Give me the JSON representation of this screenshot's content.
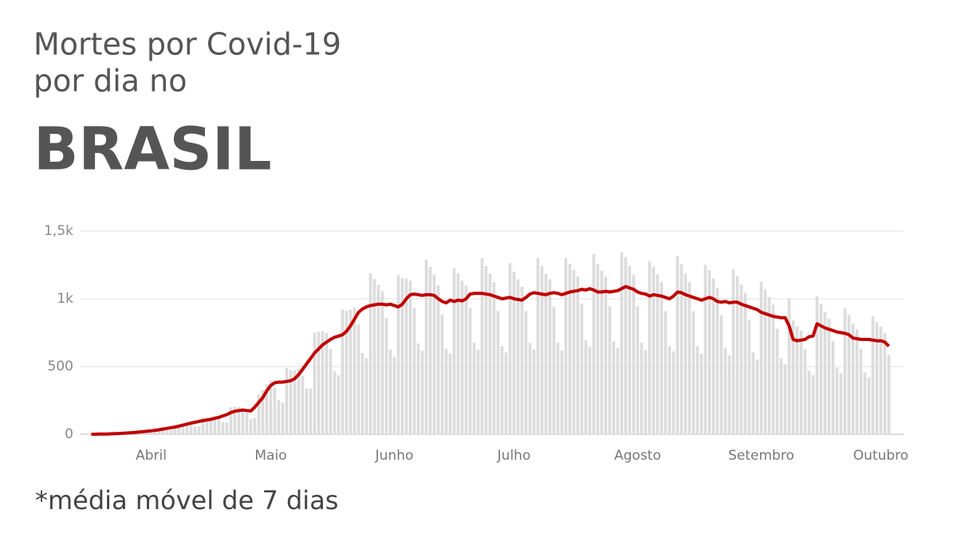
{
  "chart_data": {
    "type": "bar",
    "title": "Mortes por Covid-19",
    "title_line2": "por dia no",
    "subtitle": "BRASIL",
    "note": "*média móvel de 7 dias",
    "ylim": [
      0,
      1500
    ],
    "yticks": [
      0,
      500,
      {
        "value": 1000,
        "label": "1k"
      },
      {
        "value": 1500,
        "label": "1,5k"
      }
    ],
    "grid": true,
    "categories": [
      null,
      null,
      null,
      null,
      null,
      null,
      null,
      null,
      null,
      null,
      null,
      null,
      null,
      null,
      null,
      "Abril",
      null,
      null,
      null,
      null,
      null,
      null,
      null,
      null,
      null,
      null,
      null,
      null,
      null,
      null,
      null,
      null,
      null,
      null,
      null,
      null,
      null,
      null,
      null,
      null,
      null,
      null,
      null,
      null,
      null,
      "Maio",
      null,
      null,
      null,
      null,
      null,
      null,
      null,
      null,
      null,
      null,
      null,
      null,
      null,
      null,
      null,
      null,
      null,
      null,
      null,
      null,
      null,
      null,
      null,
      null,
      null,
      null,
      null,
      null,
      null,
      null,
      "Junho",
      null,
      null,
      null,
      null,
      null,
      null,
      null,
      null,
      null,
      null,
      null,
      null,
      null,
      null,
      null,
      null,
      null,
      null,
      null,
      null,
      null,
      null,
      null,
      null,
      null,
      null,
      null,
      null,
      null,
      "Julho",
      null,
      null,
      null,
      null,
      null,
      null,
      null,
      null,
      null,
      null,
      null,
      null,
      null,
      null,
      null,
      null,
      null,
      null,
      null,
      null,
      null,
      null,
      null,
      null,
      null,
      null,
      null,
      null,
      null,
      null,
      "Agosto",
      null,
      null,
      null,
      null,
      null,
      null,
      null,
      null,
      null,
      null,
      null,
      null,
      null,
      null,
      null,
      null,
      null,
      null,
      null,
      null,
      null,
      null,
      null,
      null,
      null,
      null,
      null,
      null,
      null,
      null,
      "Setembro",
      null,
      null,
      null,
      null,
      null,
      null,
      null,
      null,
      null,
      null,
      null,
      null,
      null,
      null,
      null,
      null,
      null,
      null,
      null,
      null,
      null,
      null,
      null,
      null,
      null,
      null,
      null,
      null,
      null,
      "Outubro",
      null,
      null
    ],
    "series": [
      {
        "type": "bar",
        "color": "#dcdcdc",
        "values": [
          0,
          0,
          1,
          1,
          2,
          2,
          2,
          6,
          8,
          10,
          12,
          12,
          10,
          11,
          28,
          30,
          33,
          36,
          34,
          28,
          29,
          66,
          72,
          77,
          83,
          74,
          57,
          57,
          125,
          126,
          127,
          130,
          113,
          88,
          87,
          200,
          204,
          201,
          196,
          158,
          112,
          120,
          294,
          324,
          368,
          396,
          342,
          250,
          231,
          488,
          474,
          472,
          484,
          432,
          338,
          336,
          750,
          756,
          759,
          748,
          630,
          465,
          435,
          919,
          912,
          920,
          935,
          810,
          601,
          564,
          1188,
          1146,
          1104,
          1056,
          860,
          624,
          570,
          1175,
          1152,
          1150,
          1133,
          932,
          670,
          615,
          1288,
          1236,
          1179,
          1100,
          882,
          631,
          594,
          1225,
          1188,
          1133,
          1100,
          932,
          676,
          624,
          1300,
          1242,
          1185,
          1122,
          909,
          650,
          603,
          1263,
          1200,
          1144,
          1089,
          909,
          673,
          627,
          1300,
          1242,
          1185,
          1144,
          941,
          676,
          618,
          1300,
          1260,
          1213,
          1166,
          963,
          692,
          645,
          1331,
          1260,
          1208,
          1161,
          945,
          686,
          636,
          1344,
          1308,
          1242,
          1177,
          945,
          676,
          621,
          1275,
          1236,
          1179,
          1122,
          909,
          650,
          612,
          1313,
          1254,
          1185,
          1122,
          909,
          650,
          594,
          1250,
          1212,
          1150,
          1078,
          878,
          637,
          582,
          1219,
          1170,
          1104,
          1045,
          846,
          605,
          552,
          1125,
          1068,
          1012,
          957,
          779,
          559,
          516,
          1000,
          840,
          794,
          765,
          630,
          468,
          435,
          1019,
          960,
          903,
          853,
          689,
          491,
          450,
          931,
          882,
          817,
          776,
          630,
          455,
          420,
          869,
          828,
          794,
          748,
          585
        ]
      },
      {
        "type": "line",
        "color": "#c00000",
        "values": [
          0,
          0,
          1,
          1,
          2,
          3,
          4,
          5,
          7,
          9,
          11,
          13,
          16,
          19,
          22,
          25,
          29,
          33,
          38,
          43,
          48,
          53,
          60,
          67,
          75,
          82,
          88,
          95,
          100,
          105,
          110,
          118,
          125,
          135,
          145,
          160,
          170,
          175,
          178,
          175,
          172,
          200,
          235,
          270,
          320,
          360,
          380,
          385,
          385,
          390,
          395,
          410,
          440,
          480,
          520,
          560,
          600,
          630,
          660,
          680,
          700,
          715,
          725,
          735,
          760,
          800,
          850,
          900,
          925,
          940,
          950,
          955,
          960,
          960,
          955,
          960,
          950,
          940,
          960,
          1000,
          1030,
          1035,
          1030,
          1025,
          1030,
          1030,
          1025,
          1000,
          980,
          970,
          990,
          980,
          990,
          985,
          1000,
          1035,
          1040,
          1040,
          1040,
          1035,
          1030,
          1020,
          1010,
          1000,
          1005,
          1010,
          1000,
          995,
          990,
          1010,
          1035,
          1045,
          1040,
          1035,
          1030,
          1040,
          1045,
          1040,
          1030,
          1040,
          1050,
          1055,
          1060,
          1070,
          1065,
          1075,
          1065,
          1050,
          1050,
          1055,
          1050,
          1055,
          1060,
          1075,
          1090,
          1080,
          1070,
          1050,
          1040,
          1035,
          1020,
          1030,
          1025,
          1020,
          1010,
          1000,
          1020,
          1050,
          1045,
          1030,
          1020,
          1010,
          1000,
          990,
          1000,
          1010,
          1000,
          980,
          975,
          980,
          970,
          975,
          975,
          960,
          950,
          940,
          930,
          920,
          900,
          890,
          880,
          870,
          865,
          860,
          860,
          800,
          700,
          690,
          695,
          700,
          720,
          725,
          815,
          800,
          785,
          775,
          765,
          755,
          750,
          745,
          735,
          710,
          705,
          700,
          700,
          700,
          695,
          690,
          690,
          680,
          650
        ]
      }
    ]
  }
}
